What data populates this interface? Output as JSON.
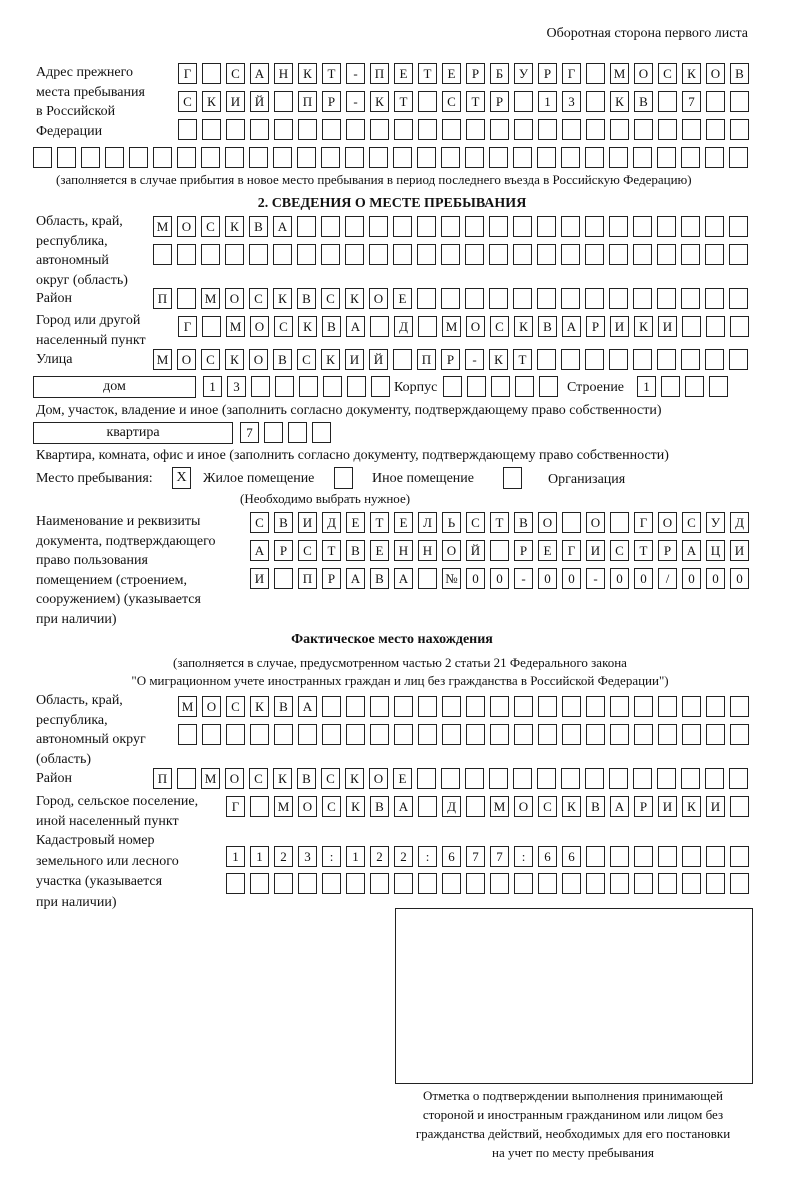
{
  "header": "Оборотная сторона первого листа",
  "prev_address": {
    "label": [
      "Адрес прежнего",
      "места пребывания",
      "в Российской",
      "Федерации"
    ],
    "rows": [
      "Г САНКТ-ПЕТЕРБУРГ МОСКОВ",
      "СКИЙ ПР-КТ СТР 13 КВ 7",
      "",
      ""
    ],
    "note": "(заполняется в случае прибытия в новое место пребывания в период последнего въезда в Российскую Федерацию)"
  },
  "section2": {
    "title": "2. СВЕДЕНИЯ О МЕСТЕ ПРЕБЫВАНИЯ",
    "region_label": [
      "Область, край,",
      "республика,",
      "автономный",
      "округ (область)"
    ],
    "region_rows": [
      "МОСКВА",
      ""
    ],
    "district_label": "Район",
    "district": "П МОСКВСКОЕ",
    "city_label": [
      "Город или другой",
      "населенный пункт"
    ],
    "city": "Г МОСКВА Д МОСКВАРИКИ",
    "street_label": "Улица",
    "street": "МОСКОВСКИЙ ПР-КТ",
    "house_type": "дом",
    "house": "13",
    "korpus_label": "Корпус",
    "korpus": "",
    "building_label": "Строение",
    "building": "1",
    "house_note": "Дом, участок, владение и иное (заполнить согласно документу, подтверждающему право собственности)",
    "apt_type": "квартира",
    "apt": "7",
    "apt_note": "Квартира, комната, офис и иное (заполнить согласно документу, подтверждающему право собственности)",
    "stay_label": "Место пребывания:",
    "options": [
      {
        "label": "Жилое помещение",
        "mark": "Х"
      },
      {
        "label": "Иное помещение",
        "mark": ""
      },
      {
        "label": "Организация",
        "mark": ""
      }
    ],
    "choose_note": "(Необходимо выбрать нужное)",
    "doc_label": [
      "Наименование и реквизиты",
      "документа, подтверждающего",
      "право пользования",
      "помещением (строением,",
      "сооружением) (указывается",
      "при наличии)"
    ],
    "doc_rows": [
      "СВИДЕТЕЛЬСТВО О ГОСУД",
      "АРСТВЕННОЙ РЕГИСТРАЦИ",
      "И ПРАВА №00-00-00/000"
    ]
  },
  "actual": {
    "title": "Фактическое место нахождения",
    "note1": "(заполняется в случае, предусмотренном частью 2 статьи 21 Федерального закона",
    "note2": "\"О миграционном учете иностранных граждан и лиц без гражданства в Российской Федерации\")",
    "region_label": [
      "Область, край,",
      "республика,",
      "автономный округ",
      "(область)"
    ],
    "region_rows": [
      "МОСКВА",
      ""
    ],
    "district_label": "Район",
    "district": "П МОСКВСКОЕ",
    "city_label": [
      "Город, сельское поселение,",
      "иной населенный пункт"
    ],
    "city": "Г МОСКВА Д МОСКВАРИКИ",
    "cadastre_label": [
      "Кадастровый номер",
      "земельного или лесного",
      "участка (указывается",
      "при наличии)"
    ],
    "cadastre_rows": [
      "1123:122:677:66",
      ""
    ]
  },
  "stamp_caption": [
    "Отметка о подтверждении выполнения принимающей",
    "стороной и иностранным гражданином или лицом без",
    "гражданства действий, необходимых для его постановки",
    "на учет по месту пребывания"
  ]
}
